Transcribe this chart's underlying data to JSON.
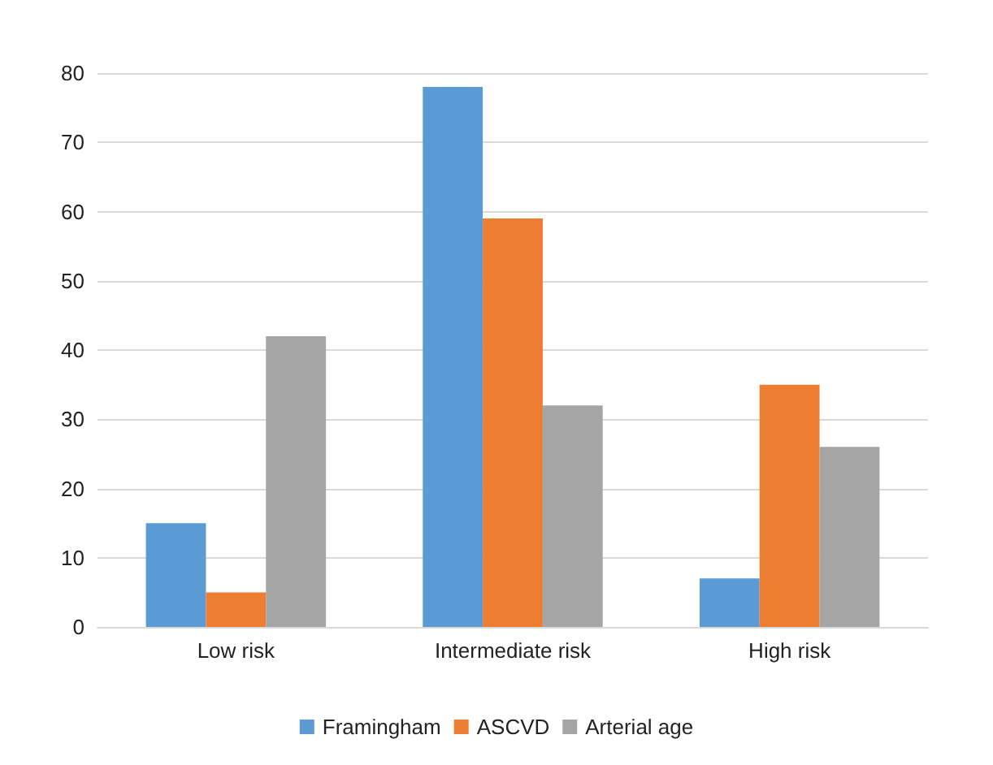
{
  "chart_data": {
    "type": "bar",
    "categories": [
      "Low risk",
      "Intermediate risk",
      "High risk"
    ],
    "series": [
      {
        "name": "Framingham",
        "color": "#5b9bd5",
        "values": [
          15,
          78,
          7
        ]
      },
      {
        "name": "ASCVD",
        "color": "#ed7d31",
        "values": [
          5,
          59,
          35
        ]
      },
      {
        "name": "Arterial age",
        "color": "#a5a5a5",
        "values": [
          42,
          32,
          26
        ]
      }
    ],
    "ylim": [
      0,
      80
    ],
    "yticks": [
      0,
      10,
      20,
      30,
      40,
      50,
      60,
      70,
      80
    ],
    "grid": "y",
    "legend": "bottom"
  }
}
